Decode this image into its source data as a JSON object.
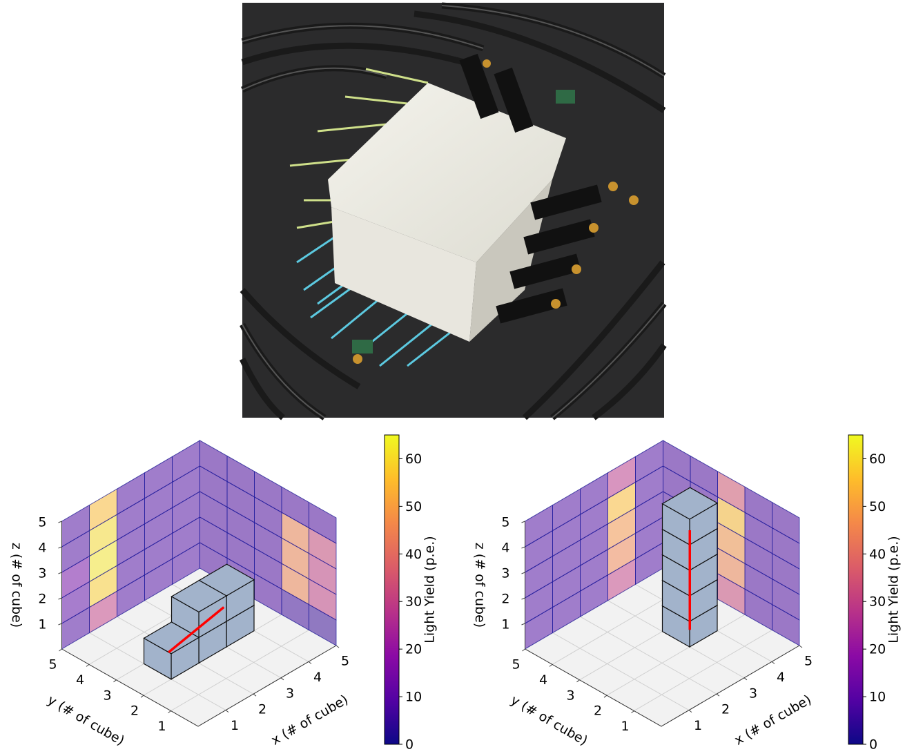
{
  "chart_data": [
    {
      "type": "voxel3d",
      "xlabel": "x (# of cube)",
      "ylabel": "y (# of cube)",
      "zlabel": "z (# of cube)",
      "xlim": [
        0,
        5
      ],
      "ylim": [
        0,
        5
      ],
      "zlim": [
        0,
        5
      ],
      "xticks": [
        1,
        2,
        3,
        4,
        5
      ],
      "yticks": [
        1,
        2,
        3,
        4,
        5
      ],
      "zticks": [
        1,
        2,
        3,
        4,
        5
      ],
      "colorbar_label": "Light Yield (p.e.)",
      "clim": [
        0,
        65
      ],
      "cticks": [
        0,
        10,
        20,
        30,
        40,
        50,
        60
      ],
      "colormap": "plasma",
      "xz_wall": [
        [
          8,
          30,
          8,
          8,
          8
        ],
        [
          10,
          58,
          8,
          8,
          8
        ],
        [
          14,
          62,
          8,
          8,
          8
        ],
        [
          8,
          60,
          8,
          8,
          8
        ],
        [
          8,
          55,
          8,
          8,
          8
        ]
      ],
      "yz_wall": [
        [
          5,
          6,
          8,
          8,
          8
        ],
        [
          30,
          45,
          8,
          8,
          8
        ],
        [
          30,
          45,
          8,
          8,
          8
        ],
        [
          32,
          45,
          8,
          8,
          8
        ],
        [
          8,
          8,
          8,
          8,
          8
        ]
      ],
      "voxels": [
        [
          1,
          2,
          0
        ],
        [
          2,
          2,
          0
        ],
        [
          3,
          2,
          0
        ],
        [
          2,
          2,
          1
        ],
        [
          3,
          2,
          1
        ]
      ],
      "track": [
        [
          1.4,
          2.5,
          0.5
        ],
        [
          3.4,
          2.5,
          1.0
        ]
      ],
      "voxel_color": "#a2b3cb",
      "track_color": "#ff0000"
    },
    {
      "type": "voxel3d",
      "xlabel": "x (# of cube)",
      "ylabel": "y (# of cube)",
      "zlabel": "z (# of cube)",
      "xlim": [
        0,
        5
      ],
      "ylim": [
        0,
        5
      ],
      "zlim": [
        0,
        5
      ],
      "xticks": [
        1,
        2,
        3,
        4,
        5
      ],
      "yticks": [
        1,
        2,
        3,
        4,
        5
      ],
      "zticks": [
        1,
        2,
        3,
        4,
        5
      ],
      "colorbar_label": "Light Yield (p.e.)",
      "clim": [
        0,
        65
      ],
      "cticks": [
        0,
        10,
        20,
        30,
        40,
        50,
        60
      ],
      "colormap": "plasma",
      "xz_wall": [
        [
          8,
          8,
          8,
          30,
          8
        ],
        [
          8,
          8,
          8,
          45,
          8
        ],
        [
          8,
          8,
          8,
          48,
          8
        ],
        [
          8,
          8,
          8,
          55,
          8
        ],
        [
          8,
          8,
          8,
          28,
          8
        ]
      ],
      "yz_wall": [
        [
          8,
          8,
          32,
          8,
          8
        ],
        [
          8,
          8,
          45,
          8,
          8
        ],
        [
          8,
          8,
          48,
          8,
          8
        ],
        [
          8,
          8,
          55,
          8,
          8
        ],
        [
          8,
          8,
          35,
          8,
          8
        ]
      ],
      "voxels": [
        [
          3,
          2,
          0
        ],
        [
          3,
          2,
          1
        ],
        [
          3,
          2,
          2
        ],
        [
          3,
          2,
          3
        ],
        [
          3,
          2,
          4
        ]
      ],
      "track": [
        [
          3.5,
          2.5,
          0.05
        ],
        [
          3.5,
          2.5,
          3.95
        ]
      ],
      "voxel_color": "#a2b3cb",
      "track_color": "#ff0000"
    }
  ]
}
